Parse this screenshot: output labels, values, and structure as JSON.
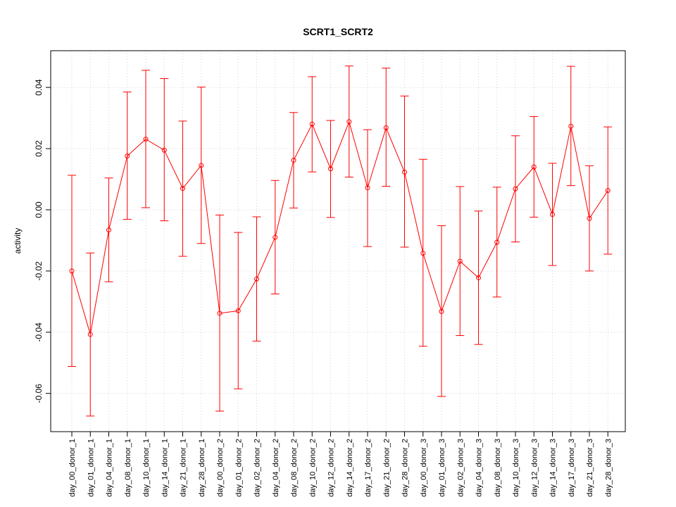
{
  "chart_data": {
    "type": "line",
    "title": "SCRT1_SCRT2",
    "xlabel": "",
    "ylabel": "activity",
    "ylim": [
      -0.0725,
      0.052
    ],
    "yticks": [
      -0.06,
      -0.04,
      -0.02,
      0.0,
      0.02,
      0.04
    ],
    "ytick_labels": [
      "-0.06",
      "-0.04",
      "-0.02",
      "0.00",
      "0.02",
      "0.04"
    ],
    "grid": true,
    "color": "#ff0000",
    "categories": [
      "day_00_donor_1",
      "day_01_donor_1",
      "day_04_donor_1",
      "day_08_donor_1",
      "day_10_donor_1",
      "day_14_donor_1",
      "day_21_donor_1",
      "day_28_donor_1",
      "day_00_donor_2",
      "day_01_donor_2",
      "day_02_donor_2",
      "day_04_donor_2",
      "day_08_donor_2",
      "day_10_donor_2",
      "day_12_donor_2",
      "day_14_donor_2",
      "day_17_donor_2",
      "day_21_donor_2",
      "day_28_donor_2",
      "day_00_donor_3",
      "day_01_donor_3",
      "day_02_donor_3",
      "day_04_donor_3",
      "day_08_donor_3",
      "day_10_donor_3",
      "day_12_donor_3",
      "day_14_donor_3",
      "day_17_donor_3",
      "day_21_donor_3",
      "day_28_donor_3"
    ],
    "values": [
      -0.02,
      -0.0407,
      -0.0066,
      0.0176,
      0.0231,
      0.0195,
      0.007,
      0.0145,
      -0.0338,
      -0.033,
      -0.0226,
      -0.009,
      0.0162,
      0.028,
      0.0134,
      0.0288,
      0.0072,
      0.0268,
      0.0123,
      -0.0142,
      -0.0332,
      -0.0168,
      -0.0222,
      -0.0106,
      0.0069,
      0.014,
      -0.0015,
      0.0273,
      -0.0028,
      0.0063
    ],
    "upper": [
      0.0113,
      -0.0141,
      0.0104,
      0.0385,
      0.0456,
      0.0429,
      0.029,
      0.0401,
      -0.0017,
      -0.0074,
      -0.0023,
      0.0096,
      0.0318,
      0.0435,
      0.0292,
      0.047,
      0.0262,
      0.0463,
      0.0372,
      0.0165,
      -0.0052,
      0.0076,
      -0.0004,
      0.0074,
      0.0242,
      0.0305,
      0.0152,
      0.0469,
      0.0144,
      0.0271
    ],
    "lower": [
      -0.0512,
      -0.0674,
      -0.0235,
      -0.0031,
      0.0007,
      -0.0036,
      -0.0152,
      -0.011,
      -0.0658,
      -0.0585,
      -0.0429,
      -0.0275,
      0.0006,
      0.0124,
      -0.0025,
      0.0107,
      -0.012,
      0.0077,
      -0.0122,
      -0.0446,
      -0.061,
      -0.0411,
      -0.044,
      -0.0285,
      -0.0105,
      -0.0024,
      -0.0182,
      0.0079,
      -0.02,
      -0.0145
    ]
  }
}
